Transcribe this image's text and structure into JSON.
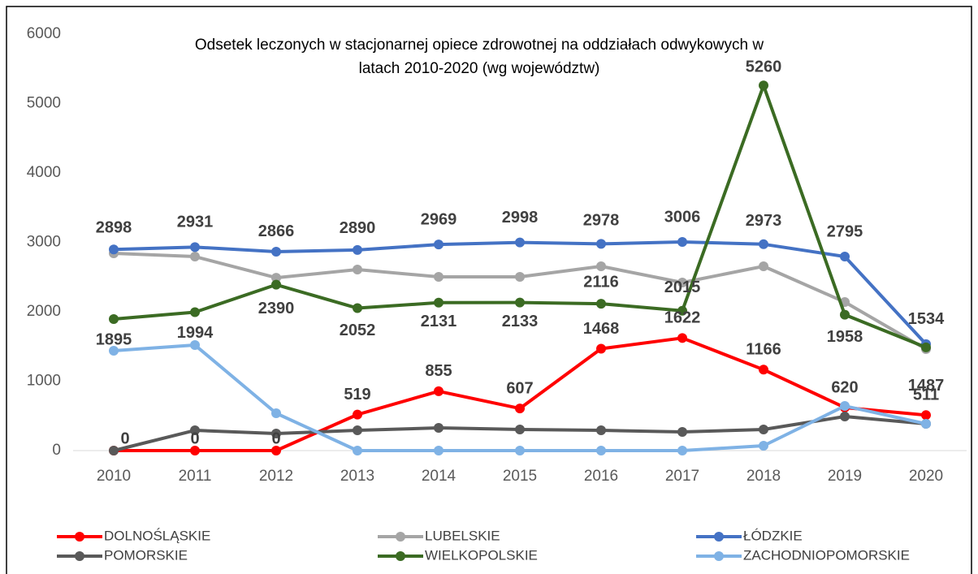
{
  "chart_data": {
    "type": "line",
    "title": [
      "Odsetek leczonych w stacjonarnej opiece zdrowotnej na oddziałach odwykowych  w",
      "latach 2010-2020 (wg województw)"
    ],
    "categories": [
      "2010",
      "2011",
      "2012",
      "2013",
      "2014",
      "2015",
      "2016",
      "2017",
      "2018",
      "2019",
      "2020"
    ],
    "ylim": [
      0,
      6000
    ],
    "yticks": [
      0,
      1000,
      2000,
      3000,
      4000,
      5000,
      6000
    ],
    "grid": false,
    "legend": "bottom",
    "series": [
      {
        "name": "DOLNOŚLĄSKIE",
        "color": "#ff0000",
        "labels": true,
        "values": [
          0,
          0,
          0,
          519,
          855,
          607,
          1468,
          1622,
          1166,
          620,
          511
        ]
      },
      {
        "name": "LUBELSKIE",
        "color": "#a5a5a5",
        "labels": false,
        "values": [
          2842,
          2795,
          2490,
          2608,
          2503,
          2503,
          2655,
          2421,
          2655,
          2140,
          1462
        ]
      },
      {
        "name": "ŁÓDZKIE",
        "color": "#4472c4",
        "labels": true,
        "values": [
          2898,
          2931,
          2866,
          2890,
          2969,
          2998,
          2978,
          3006,
          2973,
          2795,
          1534
        ]
      },
      {
        "name": "POMORSKIE",
        "color": "#595959",
        "labels": false,
        "values": [
          0,
          292,
          246,
          292,
          327,
          304,
          292,
          269,
          304,
          491,
          386
        ]
      },
      {
        "name": "WIELKOPOLSKIE",
        "color": "#3b6b23",
        "labels": true,
        "values": [
          1895,
          1994,
          2390,
          2052,
          2131,
          2133,
          2116,
          2015,
          5260,
          1958,
          1487
        ]
      },
      {
        "name": "ZACHODNIOPOMORSKIE",
        "color": "#7fb2e5",
        "labels": false,
        "values": [
          1439,
          1520,
          538,
          0,
          0,
          0,
          0,
          0,
          70,
          643,
          386
        ]
      }
    ]
  }
}
